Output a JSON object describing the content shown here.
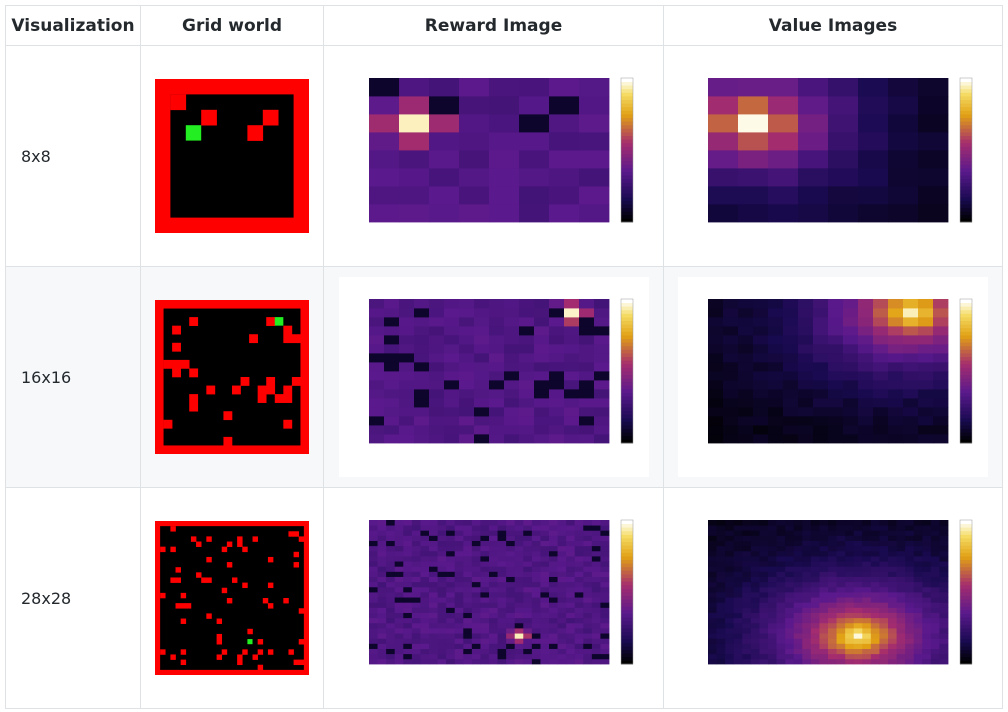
{
  "table": {
    "headers": [
      "Visualization",
      "Grid world",
      "Reward Image",
      "Value Images"
    ],
    "rows": [
      [
        "8x8"
      ],
      [
        "16x16"
      ],
      [
        "28x28"
      ]
    ]
  }
}
